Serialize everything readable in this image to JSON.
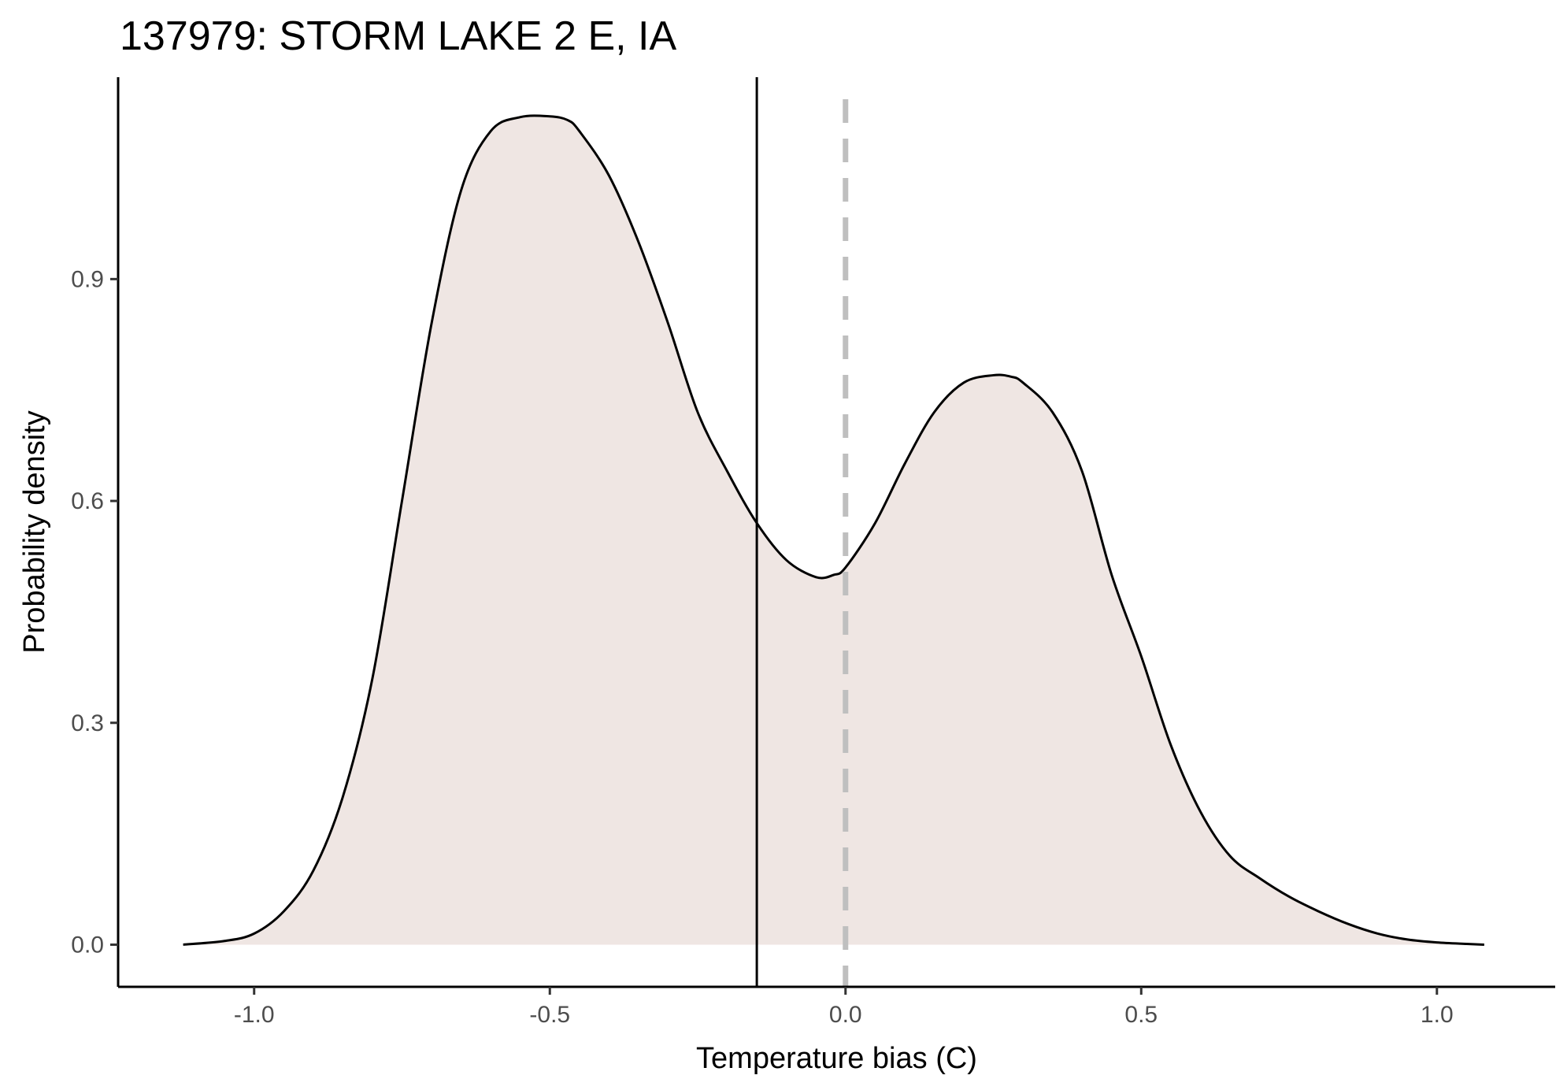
{
  "chart_data": {
    "type": "area",
    "title": "137979: STORM LAKE 2 E, IA",
    "xlabel": "Temperature bias (C)",
    "ylabel": "Probability density",
    "xlim": [
      -1.23,
      1.2
    ],
    "ylim": [
      -0.057,
      1.173
    ],
    "x_ticks": [
      -1.0,
      -0.5,
      0.0,
      0.5,
      1.0
    ],
    "x_tick_labels": [
      "-1.0",
      "-0.5",
      "0.0",
      "0.5",
      "1.0"
    ],
    "y_ticks": [
      0.0,
      0.3,
      0.6,
      0.9
    ],
    "y_tick_labels": [
      "0.0",
      "0.3",
      "0.6",
      "0.9"
    ],
    "grid": false,
    "series": [
      {
        "x": [
          -1.12,
          -1.05,
          -1.0,
          -0.95,
          -0.9,
          -0.85,
          -0.8,
          -0.75,
          -0.7,
          -0.65,
          -0.6,
          -0.55,
          -0.5,
          -0.47,
          -0.45,
          -0.4,
          -0.35,
          -0.3,
          -0.25,
          -0.2,
          -0.15,
          -0.1,
          -0.05,
          -0.02,
          0.0,
          0.05,
          0.1,
          0.15,
          0.2,
          0.25,
          0.28,
          0.3,
          0.35,
          0.4,
          0.45,
          0.5,
          0.55,
          0.6,
          0.65,
          0.7,
          0.75,
          0.8,
          0.85,
          0.9,
          0.95,
          1.0,
          1.05,
          1.08
        ],
        "y": [
          0.0,
          0.005,
          0.015,
          0.045,
          0.1,
          0.2,
          0.36,
          0.6,
          0.84,
          1.02,
          1.1,
          1.119,
          1.12,
          1.115,
          1.1,
          1.04,
          0.95,
          0.84,
          0.72,
          0.64,
          0.57,
          0.52,
          0.497,
          0.5,
          0.51,
          0.57,
          0.65,
          0.72,
          0.76,
          0.77,
          0.768,
          0.76,
          0.72,
          0.64,
          0.5,
          0.39,
          0.27,
          0.18,
          0.12,
          0.09,
          0.065,
          0.045,
          0.028,
          0.015,
          0.007,
          0.003,
          0.001,
          0.0
        ],
        "fill": "#efe6e3",
        "stroke": "#000000"
      }
    ],
    "reference_lines": [
      {
        "axis": "x",
        "value": -0.15,
        "color": "#000000",
        "style": "solid"
      },
      {
        "axis": "x",
        "value": 0.0,
        "color": "#bfbfbf",
        "style": "dashed"
      }
    ]
  }
}
